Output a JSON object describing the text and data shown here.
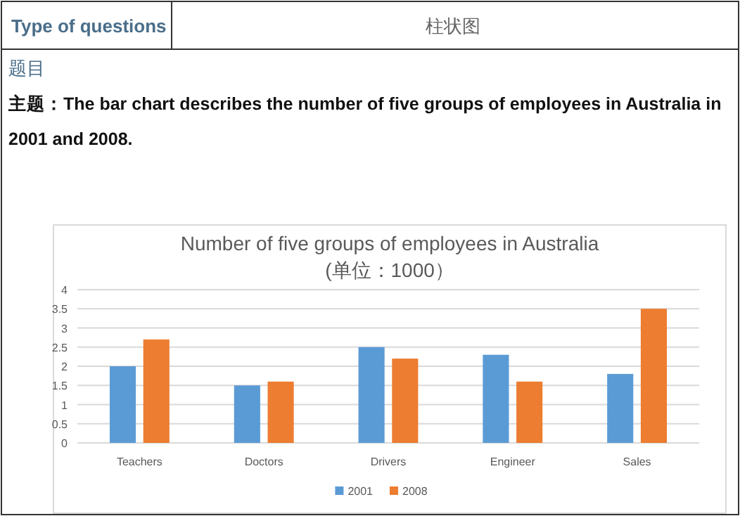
{
  "chart_data": {
    "type": "bar",
    "title": "Number of five groups of employees in Australia (单位：1000）",
    "annotations": [
      "Type of questions",
      "柱状图",
      "题目",
      "主题：The bar chart describes the number of five groups of employees in Australia in 2001 and 2008."
    ],
    "categories": [
      "Teachers",
      "Doctors",
      "Drivers",
      "Engineer",
      "Sales"
    ],
    "series": [
      {
        "name": "2001",
        "color": "#5b9bd5",
        "values": [
          2.0,
          1.5,
          2.5,
          2.3,
          1.8
        ]
      },
      {
        "name": "2008",
        "color": "#ed7d31",
        "values": [
          2.7,
          1.6,
          2.2,
          1.6,
          3.5
        ]
      }
    ],
    "ylim": [
      0,
      4
    ],
    "yticks": [
      0,
      0.5,
      1,
      1.5,
      2,
      2.5,
      3,
      3.5,
      4
    ],
    "grid": "y",
    "legend": "bottom"
  }
}
